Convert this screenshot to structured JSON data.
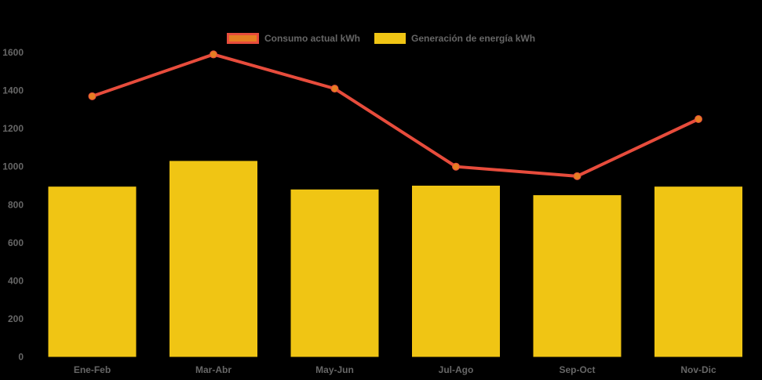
{
  "colors": {
    "background": "#000000",
    "axis_text": "#666666",
    "line": "#E74C3C",
    "marker_fill": "#E67E22",
    "bar": "#F0C514"
  },
  "legend": {
    "position": "top",
    "items": [
      {
        "label": "Consumo actual kWh",
        "swatch_fill": "#E67E22",
        "swatch_border": "#E74C3C"
      },
      {
        "label": "Generación de energía kWh",
        "swatch_fill": "#F0C514",
        "swatch_border": "#F0C514"
      }
    ]
  },
  "chart_data": {
    "type": "combo",
    "categories": [
      "Ene-Feb",
      "Mar-Abr",
      "May-Jun",
      "Jul-Ago",
      "Sep-Oct",
      "Nov-Dic"
    ],
    "series": [
      {
        "name": "Consumo actual kWh",
        "type": "line",
        "values": [
          1370,
          1590,
          1410,
          1000,
          950,
          1250
        ]
      },
      {
        "name": "Generación de energía kWh",
        "type": "bar",
        "values": [
          895,
          1030,
          880,
          900,
          850,
          895
        ]
      }
    ],
    "title": "",
    "xlabel": "",
    "ylabel": "",
    "ylim": [
      0,
      1600
    ],
    "yticks": [
      0,
      200,
      400,
      600,
      800,
      1000,
      1200,
      1400,
      1600
    ],
    "grid": false,
    "legend_position": "top"
  }
}
